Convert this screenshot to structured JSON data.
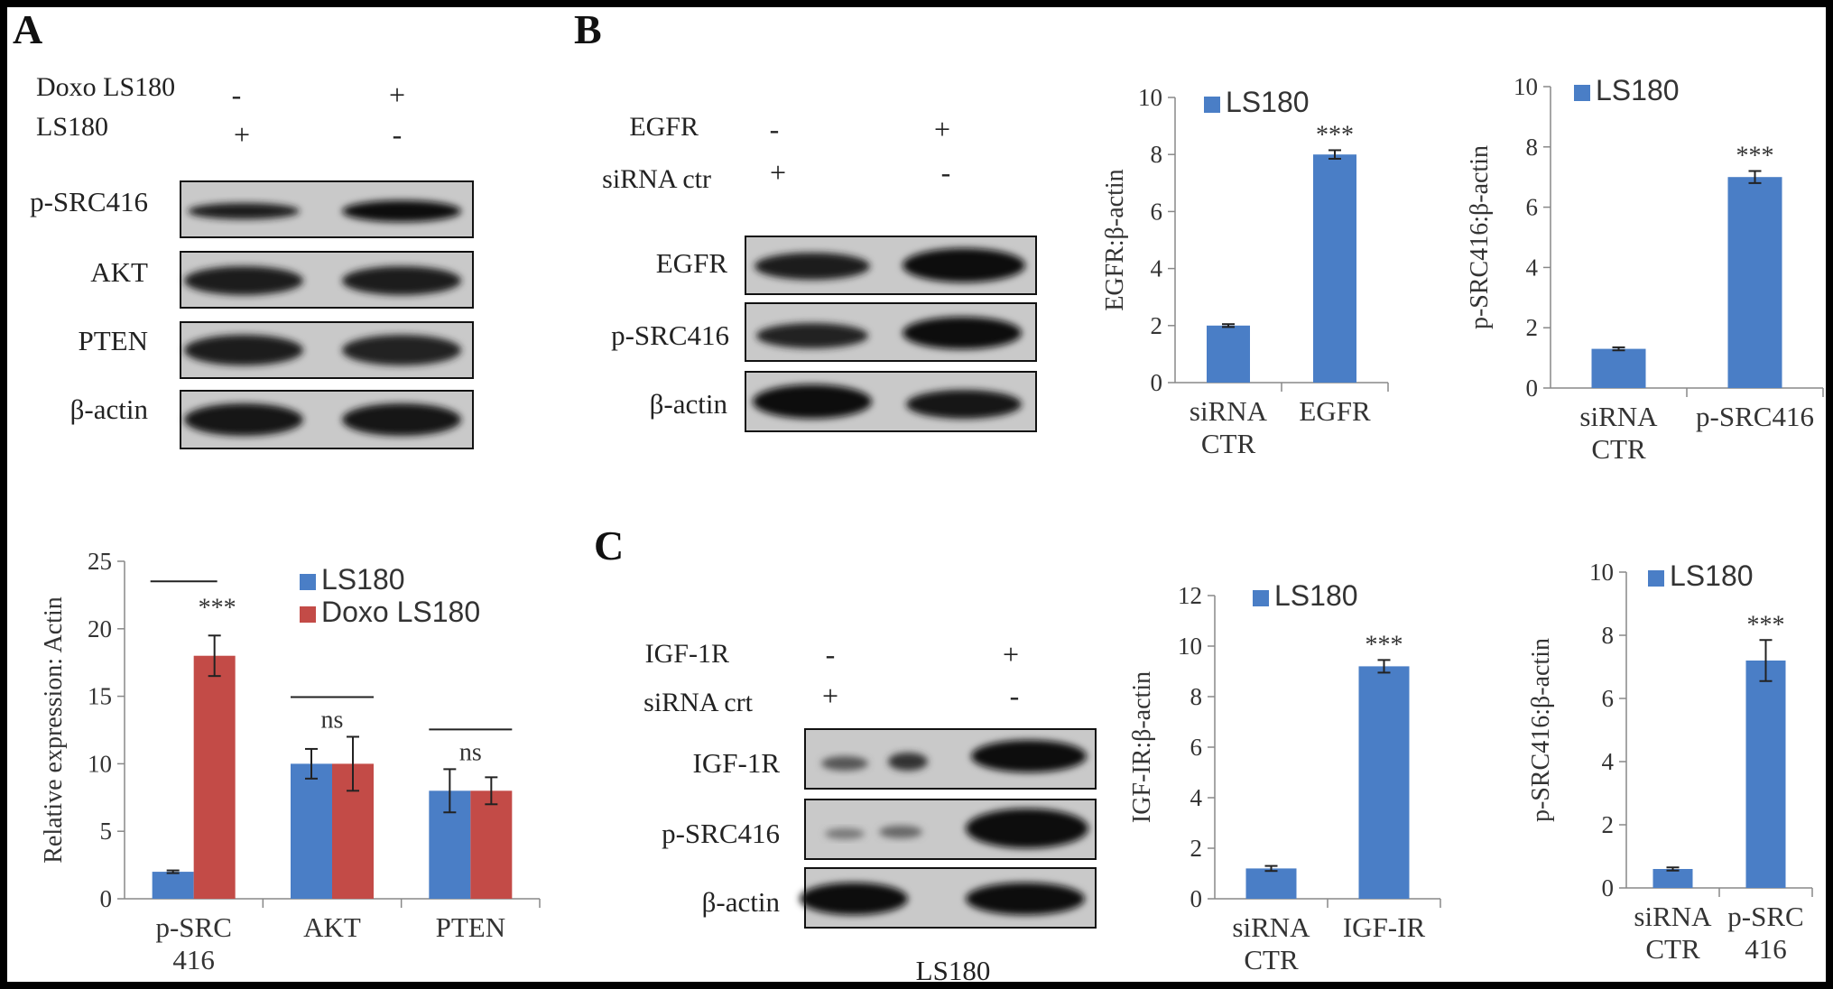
{
  "colors": {
    "ls180": "#4a7ec6",
    "doxo": "#c34b47",
    "blot_bg": "#c9c9c9",
    "band": "#1a1a1a"
  },
  "panels": {
    "a": "A",
    "b": "B",
    "c": "C"
  },
  "blot_a": {
    "cond_labels": [
      "Doxo LS180",
      "LS180"
    ],
    "signs": [
      [
        "-",
        "+"
      ],
      [
        "+",
        "-"
      ]
    ],
    "rows": [
      "p-SRC416",
      "AKT",
      "PTEN",
      "β-actin"
    ]
  },
  "blot_b": {
    "cond_labels": [
      "EGFR",
      "siRNA ctr"
    ],
    "signs": [
      [
        "-",
        "+"
      ],
      [
        "+",
        "-"
      ]
    ],
    "rows": [
      "EGFR",
      "p-SRC416",
      "β-actin"
    ]
  },
  "blot_c": {
    "cond_labels": [
      "IGF-1R",
      "siRNA crt"
    ],
    "signs": [
      [
        "-",
        "+"
      ],
      [
        "+",
        "-"
      ]
    ],
    "rows": [
      "IGF-1R",
      "p-SRC416",
      "β-actin"
    ],
    "caption": "LS180"
  },
  "chart_data": [
    {
      "id": "chartA",
      "type": "bar",
      "categories": [
        "p-SRC\n416",
        "AKT",
        "PTEN"
      ],
      "series": [
        {
          "name": "LS180",
          "values": [
            2,
            10,
            8
          ],
          "errors": [
            0.1,
            1.1,
            1.6
          ]
        },
        {
          "name": "Doxo LS180",
          "values": [
            18,
            10,
            8
          ],
          "errors": [
            1.5,
            2.0,
            1.0
          ]
        }
      ],
      "ylabel": "Relative expression: Actin",
      "ylim": [
        0,
        25
      ],
      "yticks": [
        0,
        5,
        10,
        15,
        20,
        25
      ],
      "annotations": [
        "***",
        "ns",
        "ns"
      ],
      "legend": "top-right"
    },
    {
      "id": "chartB1",
      "type": "bar",
      "categories": [
        "siRNA\nCTR",
        "EGFR"
      ],
      "series": [
        {
          "name": "LS180",
          "values": [
            2,
            8
          ],
          "errors": [
            0.05,
            0.15
          ]
        }
      ],
      "ylabel": "EGFR:β-actin",
      "ylim": [
        0,
        10
      ],
      "yticks": [
        0,
        2,
        4,
        6,
        8,
        10
      ],
      "annotations": [
        "",
        "***"
      ],
      "legend": "top-left"
    },
    {
      "id": "chartB2",
      "type": "bar",
      "categories": [
        "siRNA\nCTR",
        "p-SRC416"
      ],
      "series": [
        {
          "name": "LS180",
          "values": [
            1.3,
            7
          ],
          "errors": [
            0.05,
            0.2
          ]
        }
      ],
      "ylabel": "p-SRC416:β-actin",
      "ylim": [
        0,
        10
      ],
      "yticks": [
        0,
        2,
        4,
        6,
        8,
        10
      ],
      "annotations": [
        "",
        "***"
      ],
      "legend": "top-left"
    },
    {
      "id": "chartC1",
      "type": "bar",
      "categories": [
        "siRNA\nCTR",
        "IGF-IR"
      ],
      "series": [
        {
          "name": "LS180",
          "values": [
            1.2,
            9.2
          ],
          "errors": [
            0.1,
            0.25
          ]
        }
      ],
      "ylabel": "IGF-IR:β-actin",
      "ylim": [
        0,
        12
      ],
      "yticks": [
        0,
        2,
        4,
        6,
        8,
        10,
        12
      ],
      "annotations": [
        "",
        "***"
      ],
      "legend": "top-left"
    },
    {
      "id": "chartC2",
      "type": "bar",
      "categories": [
        "siRNA\nCTR",
        "p-SRC\n416"
      ],
      "series": [
        {
          "name": "LS180",
          "values": [
            0.6,
            7.2
          ],
          "errors": [
            0.05,
            0.65
          ]
        }
      ],
      "ylabel": "p-SRC416:β-actin",
      "ylim": [
        0,
        10
      ],
      "yticks": [
        0,
        2,
        4,
        6,
        8,
        10
      ],
      "annotations": [
        "",
        "***"
      ],
      "legend": "top-left"
    }
  ]
}
